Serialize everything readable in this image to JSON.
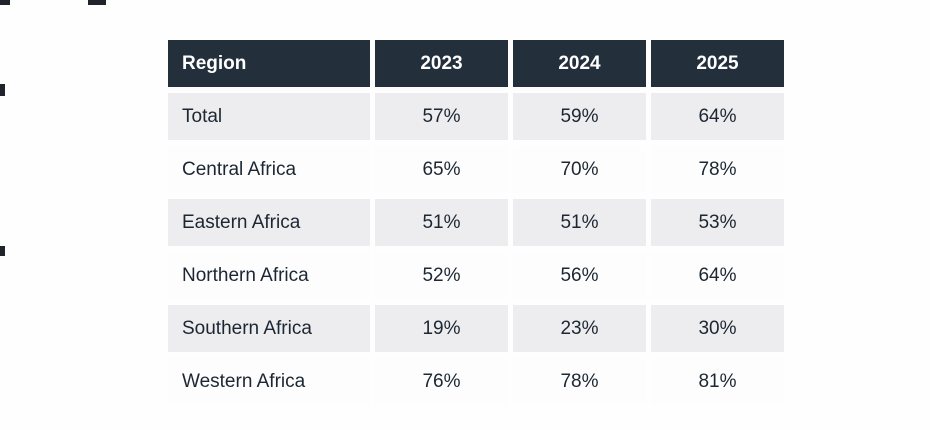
{
  "chart_data": {
    "type": "table",
    "title": "",
    "columns": [
      "Region",
      "2023",
      "2024",
      "2025"
    ],
    "rows": [
      {
        "region": "Total",
        "values": [
          "57%",
          "59%",
          "64%"
        ]
      },
      {
        "region": "Central Africa",
        "values": [
          "65%",
          "70%",
          "78%"
        ]
      },
      {
        "region": "Eastern Africa",
        "values": [
          "51%",
          "51%",
          "53%"
        ]
      },
      {
        "region": "Northern Africa",
        "values": [
          "52%",
          "56%",
          "64%"
        ]
      },
      {
        "region": "Southern Africa",
        "values": [
          "19%",
          "23%",
          "30%"
        ]
      },
      {
        "region": "Western Africa",
        "values": [
          "76%",
          "78%",
          "81%"
        ]
      }
    ]
  },
  "colors": {
    "header_bg": "#232f3b",
    "header_text": "#ffffff",
    "row_alt_bg": "#edecee",
    "row_bg": "#fdfdfd",
    "body_text": "#1c2733"
  }
}
